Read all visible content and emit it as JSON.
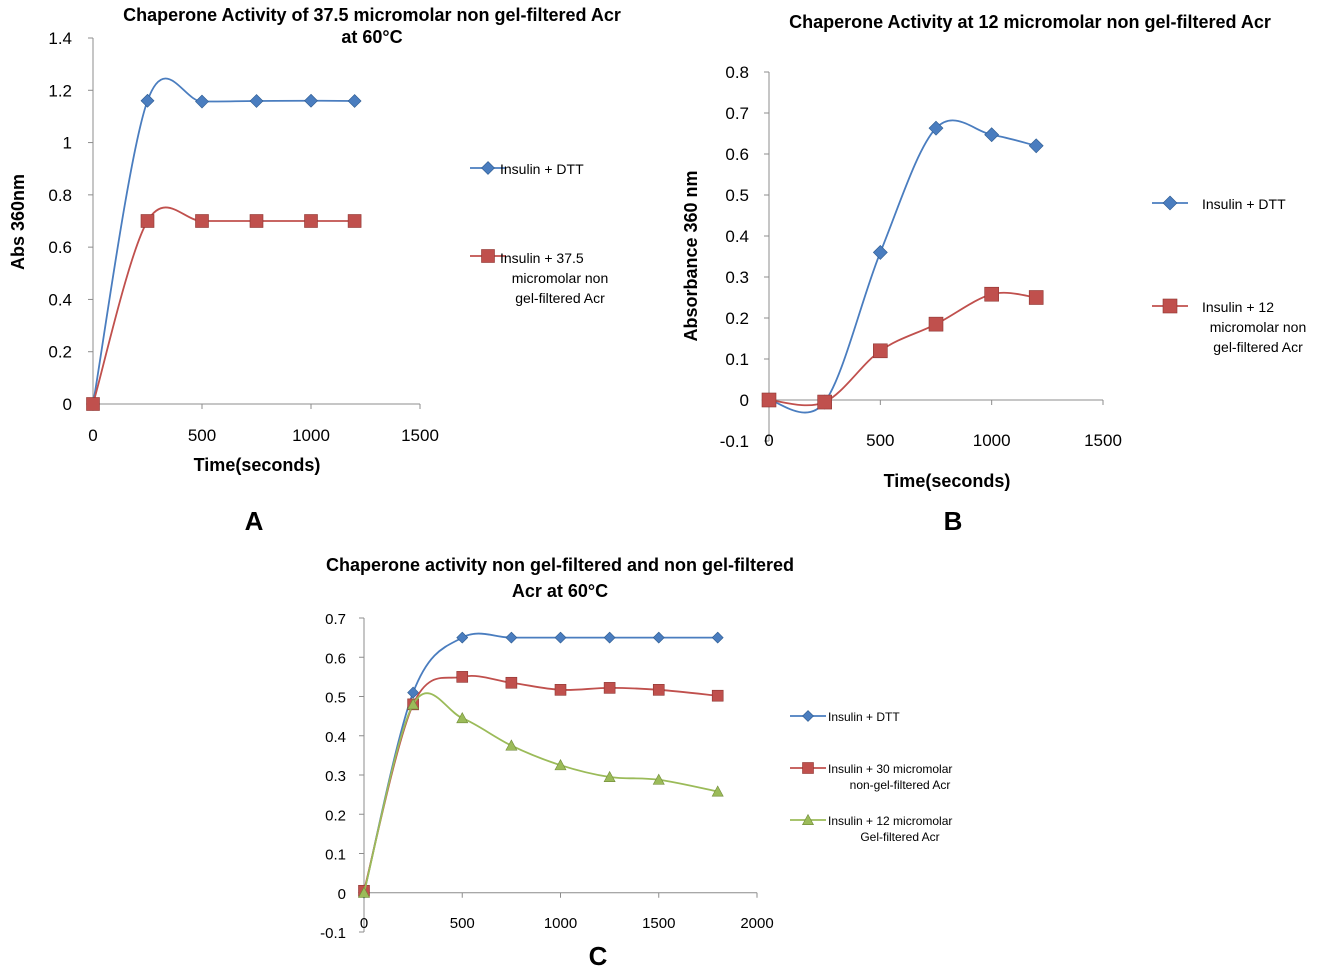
{
  "chart_data": [
    {
      "panel": "A",
      "type": "line",
      "title": [
        "Chaperone Activity of 37.5 micromolar non gel-filtered Acr",
        "at 60°C"
      ],
      "xlabel": "Time(seconds)",
      "ylabel": "Abs 360nm",
      "xlim": [
        0,
        1500
      ],
      "ylim": [
        0,
        1.4
      ],
      "xticks": [
        "0",
        "500",
        "1000",
        "1500"
      ],
      "yticks": [
        "0",
        "0.2",
        "0.4",
        "0.6",
        "0.8",
        "1",
        "1.2",
        "1.4"
      ],
      "legend_position": "right",
      "series": [
        {
          "name": "Insulin + DTT",
          "color": "#4a7dbf",
          "marker": "diamond",
          "x": [
            0,
            250,
            500,
            750,
            1000,
            1200
          ],
          "y": [
            0,
            1.16,
            1.157,
            1.159,
            1.16,
            1.159
          ]
        },
        {
          "name": [
            "Insulin + 37.5",
            "micromolar non",
            "gel-filtered Acr"
          ],
          "color": "#c0504d",
          "marker": "square",
          "x": [
            0,
            250,
            500,
            750,
            1000,
            1200
          ],
          "y": [
            0,
            0.7,
            0.7,
            0.7,
            0.7,
            0.7
          ]
        }
      ]
    },
    {
      "panel": "B",
      "type": "line",
      "title": [
        "Chaperone Activity at 12 micromolar non gel-filtered Acr"
      ],
      "xlabel": "Time(seconds)",
      "ylabel": "Absorbance 360 nm",
      "xlim": [
        0,
        1500
      ],
      "ylim": [
        -0.1,
        0.8
      ],
      "xticks": [
        "0",
        "500",
        "1000",
        "1500"
      ],
      "yticks": [
        "-0.1",
        "0",
        "0.1",
        "0.2",
        "0.3",
        "0.4",
        "0.5",
        "0.6",
        "0.7",
        "0.8"
      ],
      "legend_position": "right",
      "series": [
        {
          "name": "Insulin + DTT",
          "color": "#4a7dbf",
          "marker": "diamond",
          "x": [
            0,
            250,
            500,
            750,
            1000,
            1200
          ],
          "y": [
            0,
            -0.005,
            0.36,
            0.663,
            0.647,
            0.62
          ]
        },
        {
          "name": [
            "Insulin + 12",
            "micromolar non",
            "gel-filtered Acr"
          ],
          "color": "#c0504d",
          "marker": "square",
          "x": [
            0,
            250,
            500,
            750,
            1000,
            1200
          ],
          "y": [
            0,
            -0.005,
            0.12,
            0.185,
            0.258,
            0.25
          ]
        }
      ]
    },
    {
      "panel": "C",
      "type": "line",
      "title": [
        "Chaperone activity non gel-filtered and non gel-filtered",
        "Acr at 60°C"
      ],
      "xlabel": "",
      "ylabel": "",
      "xlim": [
        0,
        2000
      ],
      "ylim": [
        -0.1,
        0.7
      ],
      "xticks": [
        "0",
        "500",
        "1000",
        "1500",
        "2000"
      ],
      "yticks": [
        "-0.1",
        "0",
        "0.1",
        "0.2",
        "0.3",
        "0.4",
        "0.5",
        "0.6",
        "0.7"
      ],
      "legend_position": "right",
      "series": [
        {
          "name": [
            "Insulin + DTT"
          ],
          "color": "#4a7dbf",
          "marker": "diamond",
          "x": [
            0,
            250,
            500,
            750,
            1000,
            1250,
            1500,
            1800
          ],
          "y": [
            0,
            0.51,
            0.65,
            0.65,
            0.65,
            0.65,
            0.65,
            0.65
          ]
        },
        {
          "name": [
            "Insulin + 30 micromolar",
            "non-gel-filtered Acr"
          ],
          "color": "#c0504d",
          "marker": "square",
          "x": [
            0,
            250,
            500,
            750,
            1000,
            1250,
            1500,
            1800
          ],
          "y": [
            0.005,
            0.48,
            0.55,
            0.535,
            0.517,
            0.522,
            0.517,
            0.502
          ]
        },
        {
          "name": [
            "Insulin + 12 micromolar",
            "Gel-filtered Acr"
          ],
          "color": "#9bbb59",
          "marker": "triangle",
          "x": [
            0,
            250,
            500,
            750,
            1000,
            1250,
            1500,
            1800
          ],
          "y": [
            0,
            0.48,
            0.445,
            0.375,
            0.325,
            0.295,
            0.288,
            0.258
          ]
        }
      ]
    }
  ]
}
